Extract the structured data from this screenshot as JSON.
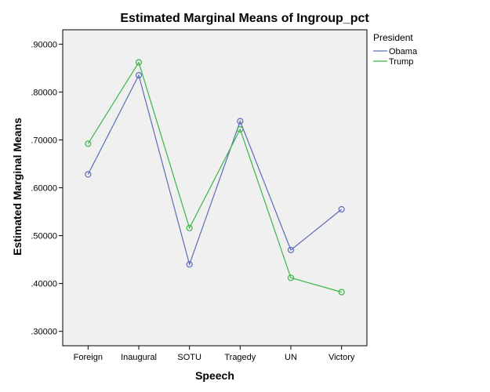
{
  "chart_data": {
    "type": "line",
    "title": "Estimated Marginal Means of Ingroup_pct",
    "xlabel": "Speech",
    "ylabel": "Estimated Marginal Means",
    "categories": [
      "Foreign",
      "Inaugural",
      "SOTU",
      "Tragedy",
      "UN",
      "Victory"
    ],
    "ylim": [
      0.27,
      0.93
    ],
    "yticks": [
      0.3,
      0.4,
      0.5,
      0.6,
      0.7,
      0.8,
      0.9
    ],
    "ytick_labels": [
      ".30000",
      ".40000",
      ".50000",
      ".60000",
      ".70000",
      ".80000",
      ".90000"
    ],
    "legend": {
      "title": "President",
      "position": "right"
    },
    "grid": false,
    "plot_background": "#f0f0f0",
    "series": [
      {
        "name": "Obama",
        "color": "#5b6db8",
        "values": [
          0.628,
          0.835,
          0.44,
          0.739,
          0.47,
          0.555
        ]
      },
      {
        "name": "Trump",
        "color": "#3cb54a",
        "values": [
          0.692,
          0.862,
          0.516,
          0.722,
          0.412,
          0.382
        ]
      }
    ]
  }
}
